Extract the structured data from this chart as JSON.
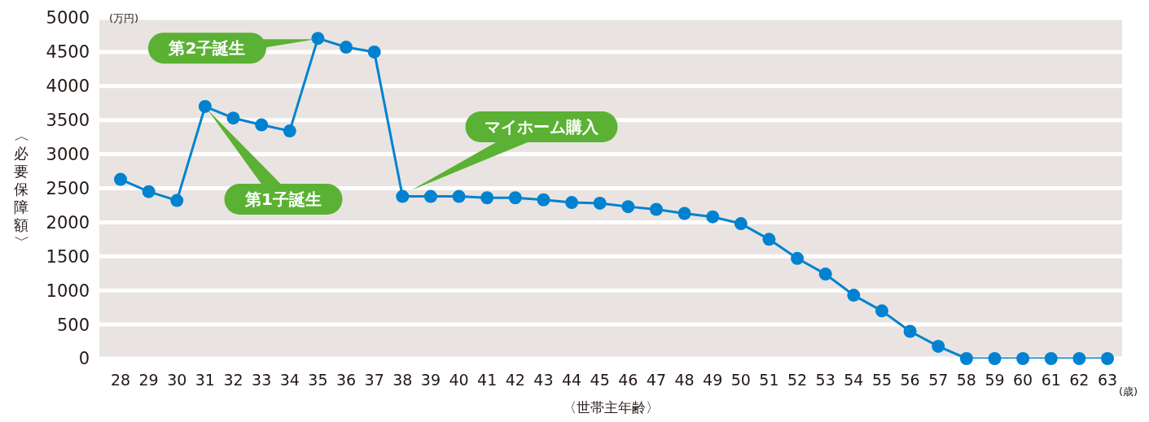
{
  "chart_data": {
    "type": "line",
    "ylabel": "〈必要保障額〉",
    "xlabel": "〈世帯主年齢〉",
    "categories": [
      "28",
      "29",
      "30",
      "31",
      "32",
      "33",
      "34",
      "35",
      "36",
      "37",
      "38",
      "39",
      "40",
      "41",
      "42",
      "43",
      "44",
      "45",
      "46",
      "47",
      "48",
      "49",
      "50",
      "51",
      "52",
      "53",
      "54",
      "55",
      "56",
      "57",
      "58",
      "59",
      "60",
      "61",
      "62",
      "63"
    ],
    "series": [
      {
        "color": "#0082d0",
        "values": [
          2630,
          2450,
          2320,
          3700,
          3530,
          3430,
          3340,
          4700,
          4570,
          4500,
          2380,
          2380,
          2380,
          2360,
          2360,
          2330,
          2290,
          2280,
          2230,
          2190,
          2130,
          2080,
          1980,
          1750,
          1470,
          1240,
          930,
          700,
          400,
          180,
          0,
          0,
          0,
          0,
          0,
          0
        ]
      }
    ],
    "ylim": [
      0,
      5000
    ],
    "yticks": [
      0,
      500,
      1000,
      1500,
      2000,
      2500,
      3000,
      3500,
      4000,
      4500,
      5000
    ],
    "grid": "y",
    "marker": "circle",
    "legend": false,
    "annotations": [
      {
        "text": "第2子誕生",
        "x": "35",
        "y": 4700
      },
      "第1子誕生",
      "マイホーム購入",
      "(万円)",
      "(歳)"
    ]
  }
}
